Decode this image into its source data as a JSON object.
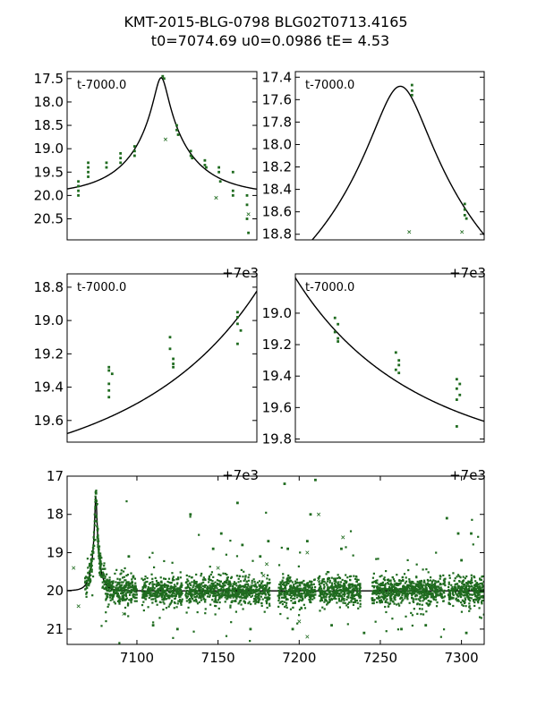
{
  "header": {
    "title_line1": "KMT-2015-BLG-0798 BLG02T0713.4165",
    "title_line2": "t0=7074.69 u0=0.0986 tE=   4.53"
  },
  "colors": {
    "data": "#1f6b1f",
    "model": "#000000"
  },
  "model": {
    "t0": 7074.69,
    "u0": 0.0986,
    "tE": 4.53,
    "base_mag": 20.0
  },
  "chart_data": [
    {
      "type": "scatter",
      "panel_label": "t-7000.0",
      "x_offset_label": "+7e3",
      "xlim": [
        7068,
        7081.5
      ],
      "ylim": [
        20.95,
        17.35
      ],
      "xticks": [
        70,
        75,
        80
      ],
      "yticks": [
        17.5,
        18.0,
        18.5,
        19.0,
        19.5,
        20.0,
        20.5
      ],
      "ytick_labels": [
        "17.5",
        "18.0",
        "18.5",
        "19.0",
        "19.5",
        "20.0",
        "20.5"
      ],
      "points": [
        [
          7068.8,
          19.7
        ],
        [
          7068.8,
          19.8
        ],
        [
          7068.8,
          19.9
        ],
        [
          7068.8,
          20.0
        ],
        [
          7069.5,
          19.3
        ],
        [
          7069.5,
          19.4
        ],
        [
          7069.5,
          19.5
        ],
        [
          7069.5,
          19.6
        ],
        [
          7070.8,
          19.3
        ],
        [
          7070.8,
          19.4
        ],
        [
          7071.8,
          19.1
        ],
        [
          7071.8,
          19.2
        ],
        [
          7071.8,
          19.3
        ],
        [
          7072.8,
          18.95
        ],
        [
          7072.8,
          19.05
        ],
        [
          7072.8,
          19.15
        ],
        [
          7074.8,
          17.45
        ],
        [
          7074.9,
          17.5
        ],
        [
          7075.8,
          18.5
        ],
        [
          7075.8,
          18.6
        ],
        [
          7075.9,
          18.7
        ],
        [
          7076.8,
          19.05
        ],
        [
          7076.8,
          19.15
        ],
        [
          7076.9,
          19.2
        ],
        [
          7077.8,
          19.25
        ],
        [
          7077.8,
          19.35
        ],
        [
          7077.9,
          19.4
        ],
        [
          7078.8,
          19.4
        ],
        [
          7078.8,
          19.5
        ],
        [
          7078.9,
          19.7
        ],
        [
          7079.8,
          19.5
        ],
        [
          7079.8,
          19.9
        ],
        [
          7079.8,
          20.0
        ],
        [
          7080.8,
          20.0
        ],
        [
          7080.8,
          20.2
        ],
        [
          7080.8,
          20.5
        ],
        [
          7080.9,
          20.8
        ]
      ],
      "outliers": [
        [
          7075.0,
          18.8
        ],
        [
          7078.6,
          20.05
        ],
        [
          7080.9,
          20.4
        ]
      ]
    },
    {
      "type": "scatter",
      "panel_label": "t-7000.0",
      "x_offset_label": "+7e3",
      "xlim": [
        7072.8,
        7076.2
      ],
      "ylim": [
        18.85,
        17.35
      ],
      "xticks": [
        74,
        75,
        76
      ],
      "yticks": [
        17.4,
        17.6,
        17.8,
        18.0,
        18.2,
        18.4,
        18.6,
        18.8
      ],
      "ytick_labels": [
        "17.4",
        "17.6",
        "17.8",
        "18.0",
        "18.2",
        "18.4",
        "18.6",
        "18.8"
      ],
      "points": [
        [
          7074.9,
          17.47
        ],
        [
          7074.9,
          17.52
        ],
        [
          7074.9,
          17.56
        ],
        [
          7075.85,
          18.53
        ],
        [
          7075.85,
          18.58
        ],
        [
          7075.85,
          18.63
        ],
        [
          7075.88,
          18.66
        ]
      ],
      "outliers": [
        [
          7074.85,
          18.78
        ],
        [
          7075.8,
          18.78
        ]
      ]
    },
    {
      "type": "scatter",
      "panel_label": "t-7000.0",
      "x_offset_label": "+7e3",
      "xlim": [
        7070.2,
        7073.15
      ],
      "ylim": [
        19.73,
        18.72
      ],
      "xticks": [
        71,
        72,
        73
      ],
      "yticks": [
        18.8,
        19.0,
        19.2,
        19.4,
        19.6
      ],
      "ytick_labels": [
        "18.8",
        "19.0",
        "19.2",
        "19.4",
        "19.6"
      ],
      "points": [
        [
          7070.85,
          19.28
        ],
        [
          7070.85,
          19.3
        ],
        [
          7070.9,
          19.32
        ],
        [
          7070.85,
          19.38
        ],
        [
          7070.85,
          19.42
        ],
        [
          7070.85,
          19.46
        ],
        [
          7071.8,
          19.1
        ],
        [
          7071.8,
          19.17
        ],
        [
          7071.85,
          19.23
        ],
        [
          7071.85,
          19.26
        ],
        [
          7071.85,
          19.28
        ],
        [
          7072.85,
          18.95
        ],
        [
          7072.85,
          18.98
        ],
        [
          7072.85,
          19.02
        ],
        [
          7072.9,
          19.06
        ],
        [
          7072.85,
          19.14
        ]
      ],
      "outliers": []
    },
    {
      "type": "scatter",
      "panel_label": "t-7000.0",
      "x_offset_label": "+7e3",
      "xlim": [
        7076.15,
        7079.25
      ],
      "ylim": [
        19.82,
        18.75
      ],
      "xticks": [
        77,
        78,
        79
      ],
      "yticks": [
        19.0,
        19.2,
        19.4,
        19.6,
        19.8
      ],
      "ytick_labels": [
        "19.0",
        "19.2",
        "19.4",
        "19.6",
        "19.8"
      ],
      "points": [
        [
          7076.8,
          19.03
        ],
        [
          7076.85,
          19.07
        ],
        [
          7076.8,
          19.12
        ],
        [
          7076.85,
          19.16
        ],
        [
          7076.85,
          19.18
        ],
        [
          7077.8,
          19.25
        ],
        [
          7077.85,
          19.3
        ],
        [
          7077.85,
          19.33
        ],
        [
          7077.8,
          19.36
        ],
        [
          7077.85,
          19.38
        ],
        [
          7078.8,
          19.42
        ],
        [
          7078.85,
          19.45
        ],
        [
          7078.8,
          19.48
        ],
        [
          7078.85,
          19.52
        ],
        [
          7078.8,
          19.55
        ],
        [
          7078.8,
          19.72
        ]
      ],
      "outliers": []
    },
    {
      "type": "scatter",
      "panel_label": "",
      "x_offset_label": "",
      "xlim": [
        7057,
        7314
      ],
      "ylim": [
        21.4,
        17.0
      ],
      "xticks": [
        7100,
        7150,
        7200,
        7250,
        7300
      ],
      "yticks": [
        17,
        18,
        19,
        20,
        21
      ],
      "ytick_labels": [
        "17",
        "18",
        "19",
        "20",
        "21"
      ],
      "note": "dense baseline photometry near magnitude 20 with gaps",
      "baseline_segments": [
        [
          7068,
          7080
        ],
        [
          7080,
          7100
        ],
        [
          7103,
          7128
        ],
        [
          7130,
          7160
        ],
        [
          7160,
          7182
        ],
        [
          7187,
          7202
        ],
        [
          7202,
          7210
        ],
        [
          7212,
          7238
        ],
        [
          7245,
          7270
        ],
        [
          7270,
          7290
        ],
        [
          7292,
          7314
        ]
      ],
      "baseline_mag": 20.0,
      "baseline_scatter": 0.35,
      "points": [
        [
          7074.8,
          17.45
        ],
        [
          7075.8,
          18.6
        ],
        [
          7073,
          19.0
        ],
        [
          7072,
          19.2
        ],
        [
          7071,
          19.3
        ],
        [
          7078,
          19.3
        ],
        [
          7079.5,
          19.6
        ],
        [
          7082,
          19.8
        ],
        [
          7095,
          19.1
        ],
        [
          7133,
          18.0
        ],
        [
          7147,
          18.9
        ],
        [
          7152,
          18.5
        ],
        [
          7162,
          17.7
        ],
        [
          7165,
          18.8
        ],
        [
          7176,
          19.1
        ],
        [
          7181,
          18.7
        ],
        [
          7191,
          17.2
        ],
        [
          7193,
          18.9
        ],
        [
          7205,
          18.7
        ],
        [
          7207,
          18.0
        ],
        [
          7210,
          17.1
        ],
        [
          7226,
          18.9
        ],
        [
          7245,
          20.2
        ],
        [
          7291,
          18.1
        ],
        [
          7298,
          18.5
        ],
        [
          7300,
          19.2
        ],
        [
          7306,
          18.5
        ],
        [
          7110,
          20.9
        ],
        [
          7125,
          21.0
        ],
        [
          7170,
          21.0
        ],
        [
          7196,
          21.0
        ],
        [
          7220,
          20.9
        ],
        [
          7240,
          21.1
        ],
        [
          7263,
          21.0
        ],
        [
          7278,
          20.9
        ],
        [
          7303,
          21.1
        ]
      ],
      "outliers": [
        [
          7064,
          20.4
        ],
        [
          7061,
          19.4
        ],
        [
          7092,
          20.6
        ],
        [
          7150,
          19.4
        ],
        [
          7178,
          19.6
        ],
        [
          7200,
          20.8
        ],
        [
          7205,
          19.0
        ],
        [
          7212,
          19.7
        ],
        [
          7205,
          21.2
        ],
        [
          7227,
          18.6
        ],
        [
          7212,
          18.0
        ],
        [
          7180,
          19.3
        ]
      ]
    }
  ]
}
